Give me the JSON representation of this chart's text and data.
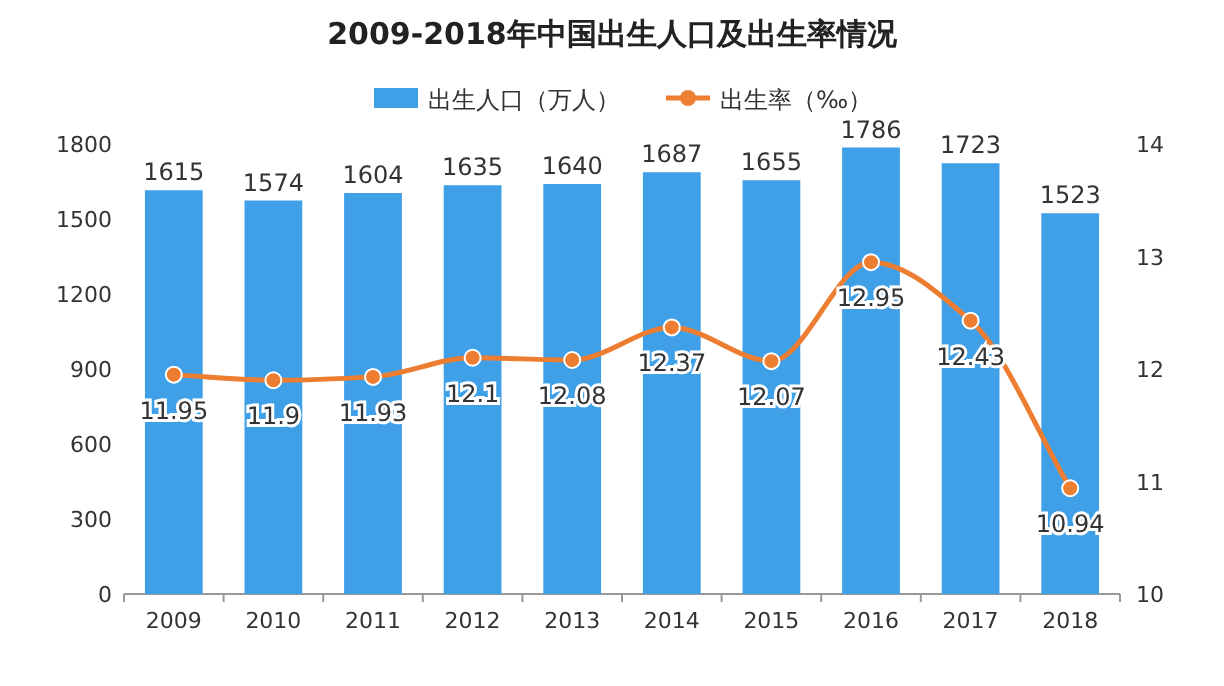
{
  "chart_data": {
    "type": "bar",
    "title": "2009-2018年中国出生人口及出生率情况",
    "categories": [
      "2009",
      "2010",
      "2011",
      "2012",
      "2013",
      "2014",
      "2015",
      "2016",
      "2017",
      "2018"
    ],
    "series": [
      {
        "name": "出生人口（万人）",
        "color": "#3fa0e8",
        "values": [
          1615,
          1574,
          1604,
          1635,
          1640,
          1687,
          1655,
          1786,
          1723,
          1523
        ]
      },
      {
        "name": "出生率（‰）",
        "type": "line",
        "axis": "y2",
        "color": "#ed7d31",
        "marker": "circle",
        "line_style": "solid",
        "values": [
          11.95,
          11.9,
          11.93,
          12.1,
          12.08,
          12.37,
          12.07,
          12.95,
          12.43,
          10.94
        ]
      }
    ],
    "ylim": [
      0,
      1800
    ],
    "yticks": [
      0,
      300,
      600,
      900,
      1200,
      1500,
      1800
    ],
    "y2lim": [
      10,
      14
    ],
    "y2ticks": [
      10,
      11,
      12,
      13,
      14
    ],
    "legend": "top",
    "data_labels": true
  }
}
